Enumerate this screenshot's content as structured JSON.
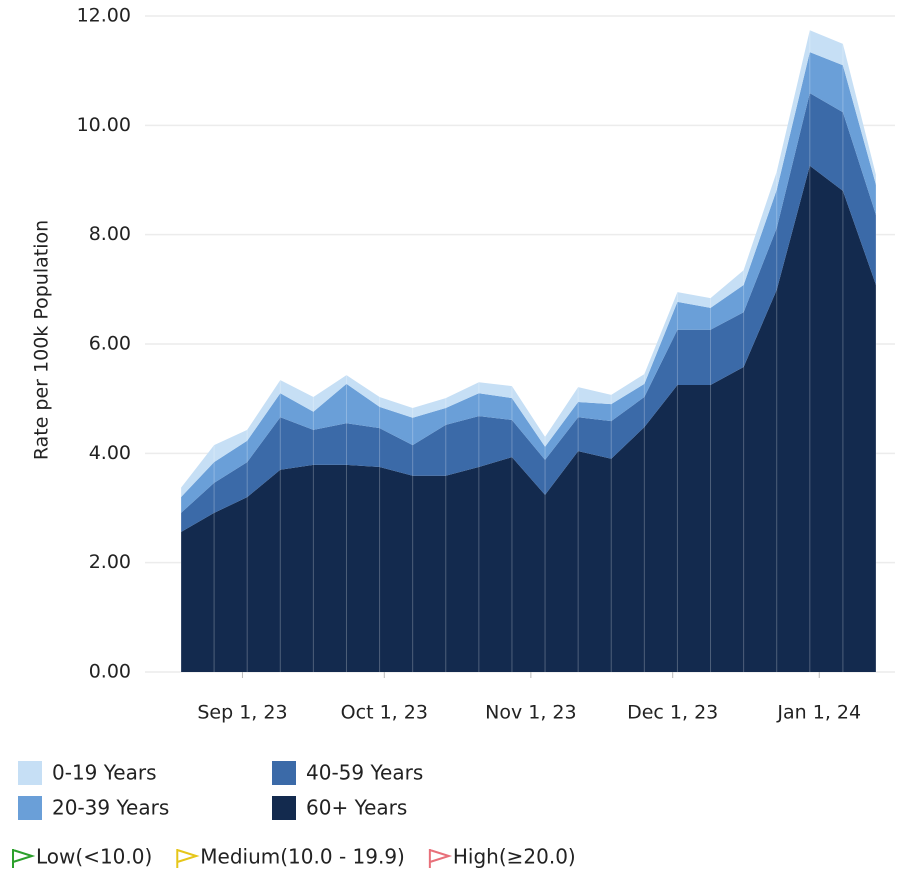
{
  "chart_data": {
    "type": "stacked_area",
    "y_label": "Rate per 100k Population",
    "x": [
      "2023-08-19",
      "2023-08-26",
      "2023-09-02",
      "2023-09-09",
      "2023-09-16",
      "2023-09-23",
      "2023-09-30",
      "2023-10-07",
      "2023-10-14",
      "2023-10-21",
      "2023-10-28",
      "2023-11-04",
      "2023-11-11",
      "2023-11-18",
      "2023-11-25",
      "2023-12-02",
      "2023-12-09",
      "2023-12-16",
      "2023-12-23",
      "2023-12-30",
      "2024-01-06",
      "2024-01-13"
    ],
    "xlim": [
      "2023-08-19",
      "2024-01-13"
    ],
    "xticks": [
      {
        "value": "2023-09-01",
        "label": "Sep 1, 23"
      },
      {
        "value": "2023-10-01",
        "label": "Oct 1, 23"
      },
      {
        "value": "2023-11-01",
        "label": "Nov 1, 23"
      },
      {
        "value": "2023-12-01",
        "label": "Dec 1, 23"
      },
      {
        "value": "2024-01-01",
        "label": "Jan 1, 24"
      }
    ],
    "ylim": [
      0,
      12
    ],
    "yticks": [
      {
        "value": 0,
        "label": "0.00"
      },
      {
        "value": 2,
        "label": "2.00"
      },
      {
        "value": 4,
        "label": "4.00"
      },
      {
        "value": 6,
        "label": "6.00"
      },
      {
        "value": 8,
        "label": "8.00"
      },
      {
        "value": 10,
        "label": "10.00"
      },
      {
        "value": 12,
        "label": "12.00"
      }
    ],
    "grid": true,
    "series": [
      {
        "name": "0-19 Years",
        "color": "#c6dff5",
        "values": [
          0.17,
          0.31,
          0.2,
          0.24,
          0.27,
          0.16,
          0.18,
          0.18,
          0.18,
          0.2,
          0.22,
          0.18,
          0.27,
          0.17,
          0.18,
          0.18,
          0.18,
          0.27,
          0.33,
          0.4,
          0.39,
          0.18
        ]
      },
      {
        "name": "20-39 Years",
        "color": "#6a9fd8",
        "values": [
          0.29,
          0.38,
          0.39,
          0.44,
          0.33,
          0.72,
          0.39,
          0.5,
          0.31,
          0.42,
          0.4,
          0.24,
          0.28,
          0.31,
          0.24,
          0.51,
          0.4,
          0.5,
          0.7,
          0.75,
          0.86,
          0.55
        ]
      },
      {
        "name": "40-59 Years",
        "color": "#3b6aa8",
        "values": [
          0.35,
          0.55,
          0.64,
          0.96,
          0.64,
          0.76,
          0.71,
          0.56,
          0.93,
          0.93,
          0.68,
          0.64,
          0.62,
          0.69,
          0.55,
          1.01,
          1.01,
          1.0,
          1.13,
          1.33,
          1.44,
          1.28
        ]
      },
      {
        "name": "60+ Years",
        "color": "#132a4e",
        "values": [
          2.56,
          2.91,
          3.2,
          3.7,
          3.79,
          3.79,
          3.75,
          3.59,
          3.59,
          3.75,
          3.93,
          3.24,
          4.04,
          3.9,
          4.48,
          5.25,
          5.25,
          5.58,
          6.99,
          9.26,
          8.8,
          7.08
        ]
      }
    ],
    "thresholds": [
      {
        "label": "Low(<10.0)",
        "color": "#2ca02c"
      },
      {
        "label": "Medium(10.0 - 19.9)",
        "color": "#e6c619"
      },
      {
        "label": "High(≥20.0)",
        "color": "#e8707a"
      }
    ]
  }
}
